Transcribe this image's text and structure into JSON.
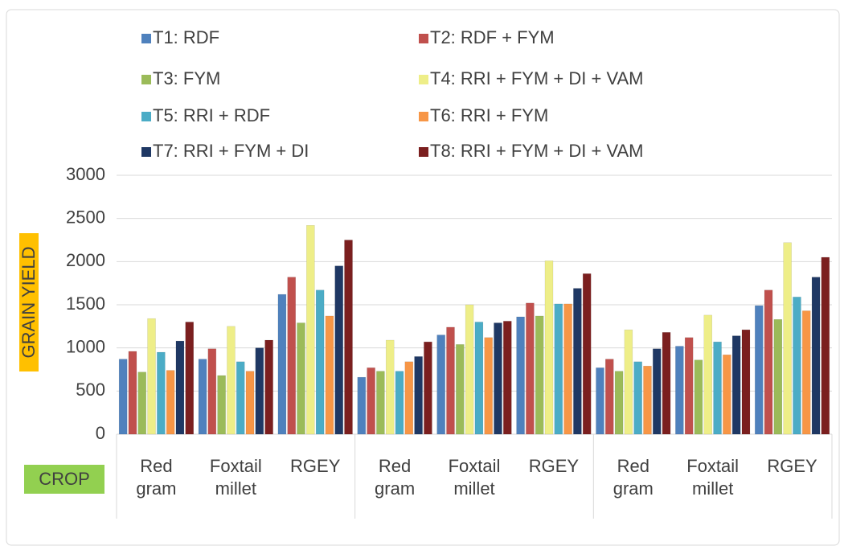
{
  "chart_data": {
    "type": "bar",
    "y_label": "GRAIN YIELD",
    "x_label": "CROP",
    "categories": [
      "Red gram",
      "Foxtail millet",
      "RGEY",
      "Red gram",
      "Foxtail millet",
      "RGEY",
      "Red gram",
      "Foxtail millet",
      "RGEY"
    ],
    "series": [
      {
        "name": "T1: RDF",
        "color": "#4f81bd",
        "values": [
          870,
          870,
          1620,
          660,
          1150,
          1360,
          770,
          1020,
          1490
        ]
      },
      {
        "name": "T2: RDF + FYM",
        "color": "#c0504d",
        "values": [
          960,
          990,
          1820,
          770,
          1240,
          1520,
          870,
          1120,
          1670
        ]
      },
      {
        "name": "T3: FYM",
        "color": "#9bbb59",
        "values": [
          720,
          680,
          1290,
          730,
          1040,
          1370,
          730,
          860,
          1330
        ]
      },
      {
        "name": "T4: RRI + FYM + DI + VAM",
        "color": "#eeee88",
        "values": [
          1340,
          1250,
          2420,
          1090,
          1500,
          2010,
          1210,
          1380,
          2220
        ]
      },
      {
        "name": "T5: RRI + RDF",
        "color": "#4bacc6",
        "values": [
          950,
          840,
          1670,
          730,
          1300,
          1510,
          840,
          1070,
          1590
        ]
      },
      {
        "name": "T6: RRI + FYM",
        "color": "#f79646",
        "values": [
          740,
          730,
          1370,
          840,
          1120,
          1510,
          790,
          920,
          1430
        ]
      },
      {
        "name": "T7: RRI + FYM + DI",
        "color": "#1f3864",
        "values": [
          1080,
          1000,
          1950,
          900,
          1290,
          1690,
          990,
          1140,
          1820
        ]
      },
      {
        "name": "T8: RRI + FYM + DI + VAM",
        "color": "#7b1f1f",
        "values": [
          1300,
          1090,
          2250,
          1070,
          1310,
          1860,
          1180,
          1210,
          2050
        ]
      }
    ],
    "ylim": [
      0,
      3000
    ],
    "yticks": [
      0,
      500,
      1000,
      1500,
      2000,
      2500,
      3000
    ],
    "grid": true
  }
}
